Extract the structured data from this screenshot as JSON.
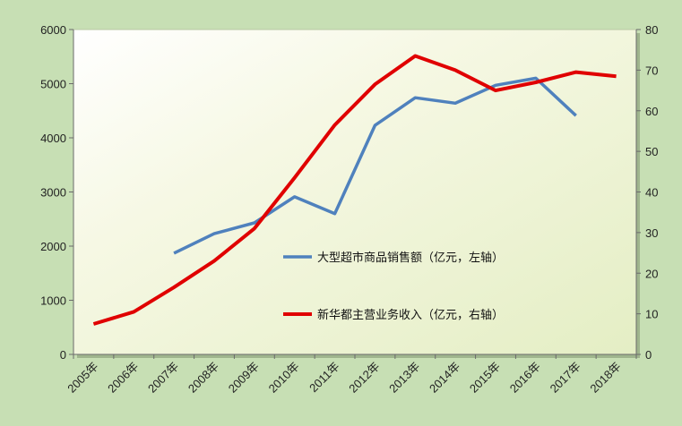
{
  "chart_data": {
    "type": "line",
    "categories": [
      "2005年",
      "2006年",
      "2007年",
      "2008年",
      "2009年",
      "2010年",
      "2011年",
      "2012年",
      "2013年",
      "2014年",
      "2015年",
      "2016年",
      "2017年",
      "2018年"
    ],
    "series": [
      {
        "name": "大型超市商品销售额（亿元，左轴）",
        "axis": "left",
        "color": "#4f81bd",
        "values": [
          null,
          null,
          1870,
          2230,
          2430,
          2910,
          2600,
          4230,
          4740,
          4640,
          4970,
          5100,
          4410,
          null
        ]
      },
      {
        "name": "新华都主营业务收入（亿元，右轴）",
        "axis": "right",
        "color": "#e00000",
        "values": [
          7.5,
          10.5,
          16.5,
          23,
          31,
          43.5,
          56.5,
          66.5,
          73.5,
          70,
          65,
          67,
          69.5,
          68.5
        ]
      }
    ],
    "y_left": {
      "min": 0,
      "max": 6000,
      "ticks": [
        0,
        1000,
        2000,
        3000,
        4000,
        5000,
        6000
      ]
    },
    "y_right": {
      "min": 0,
      "max": 80,
      "ticks": [
        0,
        10,
        20,
        30,
        40,
        50,
        60,
        70,
        80
      ]
    },
    "grid": false,
    "legend_position": "center-right",
    "title": "",
    "xlabel": "",
    "ylabel": ""
  }
}
